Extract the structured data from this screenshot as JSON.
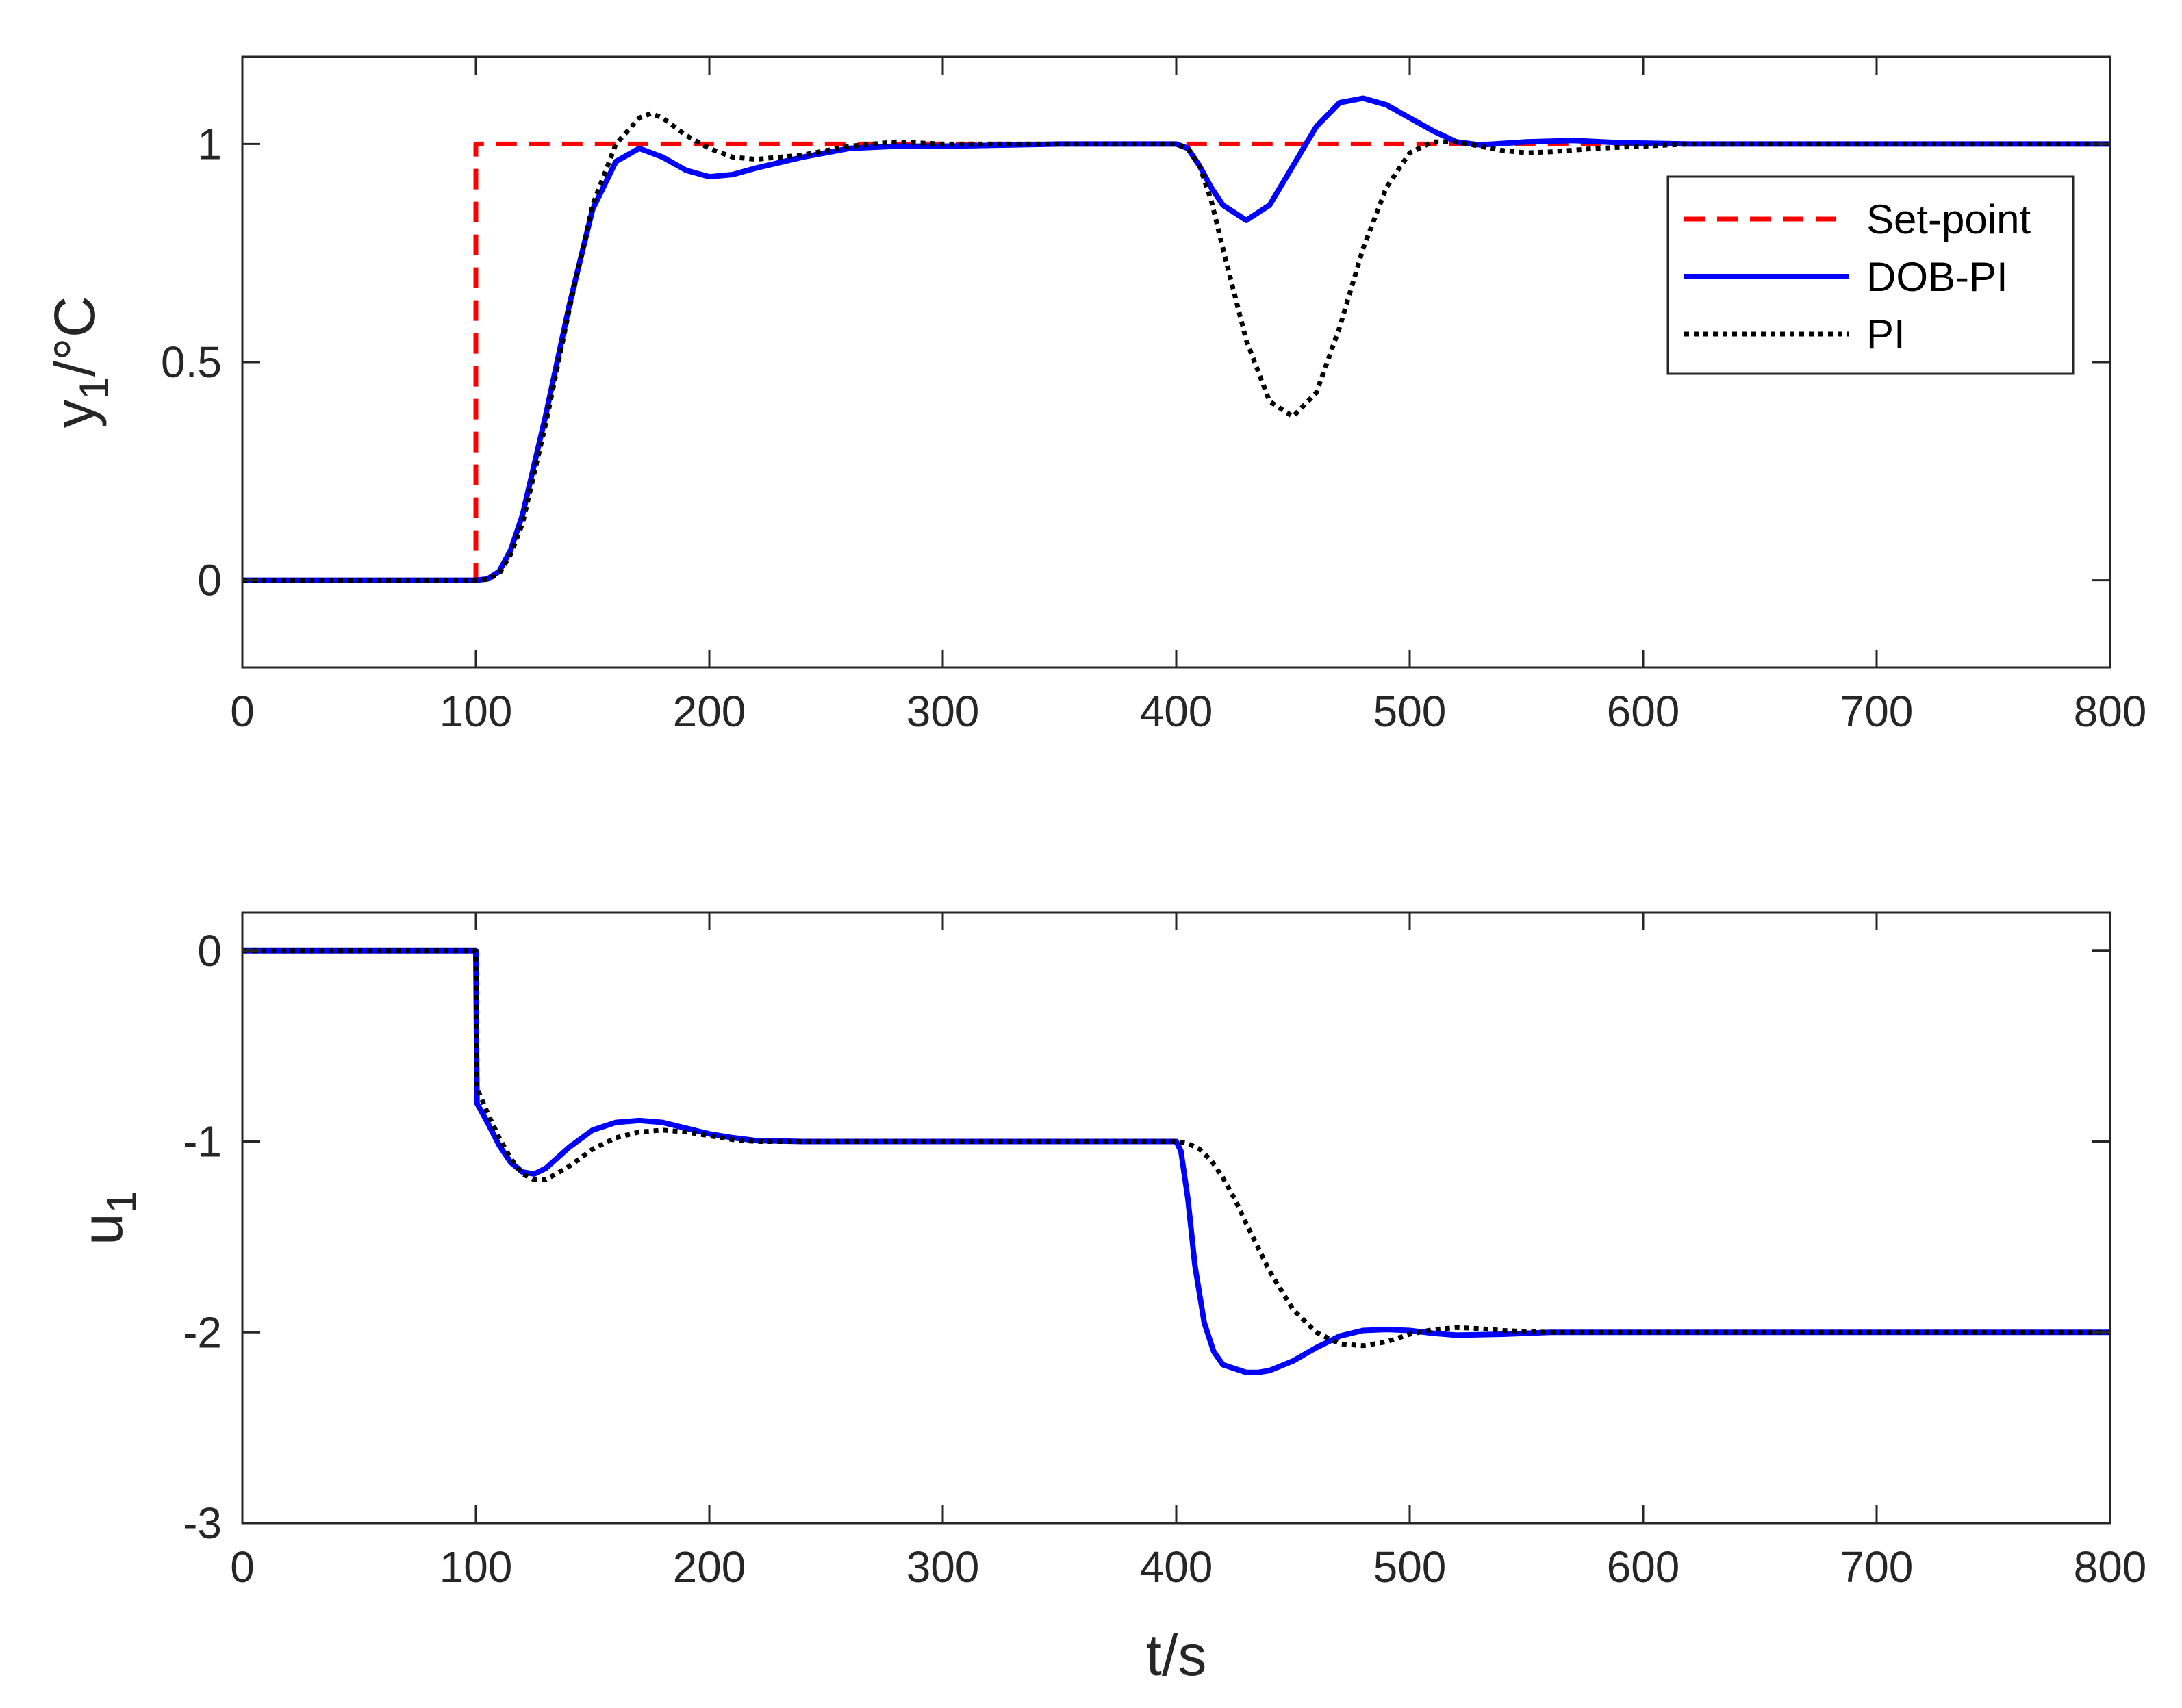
{
  "chart_data": [
    {
      "type": "line",
      "xlabel": "",
      "ylabel": "y",
      "ylabel_sub": "1",
      "ylabel_unit": "/°C",
      "xlim": [
        0,
        800
      ],
      "ylim": [
        -0.2,
        1.2
      ],
      "xticks": [
        0,
        100,
        200,
        300,
        400,
        500,
        600,
        700,
        800
      ],
      "yticks": [
        0,
        0.5,
        1
      ],
      "grid": false,
      "legend_position": "top-right",
      "series": [
        {
          "name": "Set-point",
          "color": "#ff0000",
          "style": "dashed",
          "x": [
            0,
            100,
            100,
            800
          ],
          "y": [
            0,
            0,
            1,
            1
          ]
        },
        {
          "name": "DOB-PI",
          "color": "#0000ff",
          "style": "solid",
          "x": [
            0,
            100,
            105,
            110,
            115,
            120,
            130,
            140,
            150,
            160,
            170,
            180,
            190,
            200,
            210,
            220,
            240,
            260,
            280,
            300,
            350,
            400,
            405,
            410,
            415,
            420,
            430,
            440,
            450,
            460,
            470,
            480,
            490,
            500,
            510,
            520,
            530,
            550,
            570,
            590,
            620,
            700,
            800
          ],
          "y": [
            0,
            0,
            0.003,
            0.02,
            0.07,
            0.15,
            0.38,
            0.63,
            0.85,
            0.96,
            0.99,
            0.97,
            0.94,
            0.925,
            0.93,
            0.945,
            0.97,
            0.99,
            0.995,
            0.995,
            1.0,
            1.0,
            0.99,
            0.95,
            0.9,
            0.86,
            0.825,
            0.86,
            0.95,
            1.04,
            1.095,
            1.105,
            1.09,
            1.06,
            1.03,
            1.005,
            0.998,
            1.005,
            1.008,
            1.003,
            1.0,
            1.0,
            1.0
          ]
        },
        {
          "name": "PI",
          "color": "#000000",
          "style": "dotted",
          "x": [
            0,
            100,
            105,
            110,
            115,
            120,
            130,
            140,
            150,
            160,
            170,
            175,
            180,
            190,
            200,
            210,
            220,
            240,
            260,
            280,
            300,
            350,
            400,
            405,
            410,
            415,
            420,
            430,
            440,
            450,
            460,
            470,
            480,
            490,
            500,
            510,
            520,
            530,
            540,
            550,
            560,
            580,
            600,
            620,
            700,
            800
          ],
          "y": [
            0,
            0,
            0.002,
            0.015,
            0.06,
            0.13,
            0.36,
            0.62,
            0.86,
            1.0,
            1.06,
            1.07,
            1.06,
            1.02,
            0.99,
            0.97,
            0.965,
            0.975,
            0.995,
            1.005,
            1.0,
            1.0,
            1.0,
            0.99,
            0.95,
            0.87,
            0.76,
            0.55,
            0.41,
            0.375,
            0.43,
            0.58,
            0.76,
            0.9,
            0.98,
            1.005,
            1.005,
            0.995,
            0.985,
            0.98,
            0.982,
            0.99,
            0.995,
            1.0,
            1.0,
            1.0
          ]
        }
      ]
    },
    {
      "type": "line",
      "xlabel": "t/s",
      "ylabel": "u",
      "ylabel_sub": "1",
      "ylabel_unit": "",
      "xlim": [
        0,
        800
      ],
      "ylim": [
        -3,
        0.2
      ],
      "xticks": [
        0,
        100,
        200,
        300,
        400,
        500,
        600,
        700,
        800
      ],
      "yticks": [
        0,
        -1,
        -2,
        -3
      ],
      "grid": false,
      "series": [
        {
          "name": "DOB-PI",
          "color": "#0000ff",
          "style": "solid",
          "x": [
            0,
            100,
            100.5,
            105,
            110,
            115,
            120,
            125,
            130,
            140,
            150,
            160,
            170,
            180,
            190,
            200,
            210,
            220,
            240,
            260,
            300,
            350,
            400,
            402,
            405,
            408,
            412,
            416,
            420,
            430,
            435,
            440,
            450,
            460,
            470,
            480,
            490,
            500,
            510,
            520,
            540,
            560,
            600,
            700,
            800
          ],
          "y": [
            0,
            0,
            -0.8,
            -0.9,
            -1.02,
            -1.11,
            -1.16,
            -1.17,
            -1.14,
            -1.03,
            -0.94,
            -0.9,
            -0.89,
            -0.9,
            -0.93,
            -0.96,
            -0.98,
            -0.995,
            -1.0,
            -1.0,
            -1.0,
            -1.0,
            -1.0,
            -1.05,
            -1.3,
            -1.65,
            -1.95,
            -2.1,
            -2.17,
            -2.21,
            -2.21,
            -2.2,
            -2.15,
            -2.08,
            -2.02,
            -1.99,
            -1.985,
            -1.99,
            -2.005,
            -2.015,
            -2.01,
            -2.0,
            -2.0,
            -2.0,
            -2.0
          ]
        },
        {
          "name": "PI",
          "color": "#000000",
          "style": "dotted",
          "x": [
            0,
            100,
            100.5,
            105,
            110,
            115,
            120,
            125,
            130,
            140,
            150,
            160,
            170,
            180,
            190,
            200,
            210,
            220,
            240,
            260,
            300,
            350,
            400,
            405,
            410,
            415,
            420,
            425,
            430,
            440,
            450,
            460,
            470,
            480,
            490,
            500,
            510,
            520,
            530,
            540,
            560,
            600,
            700,
            800
          ],
          "y": [
            0,
            0,
            -0.72,
            -0.85,
            -0.98,
            -1.09,
            -1.17,
            -1.2,
            -1.2,
            -1.13,
            -1.04,
            -0.98,
            -0.95,
            -0.94,
            -0.95,
            -0.97,
            -0.99,
            -1.0,
            -1.0,
            -1.0,
            -1.0,
            -1.0,
            -1.0,
            -1.01,
            -1.04,
            -1.1,
            -1.19,
            -1.3,
            -1.43,
            -1.68,
            -1.88,
            -2.0,
            -2.06,
            -2.07,
            -2.05,
            -2.01,
            -1.985,
            -1.975,
            -1.98,
            -1.99,
            -2.0,
            -2.0,
            -2.0,
            -2.0
          ]
        }
      ]
    }
  ]
}
